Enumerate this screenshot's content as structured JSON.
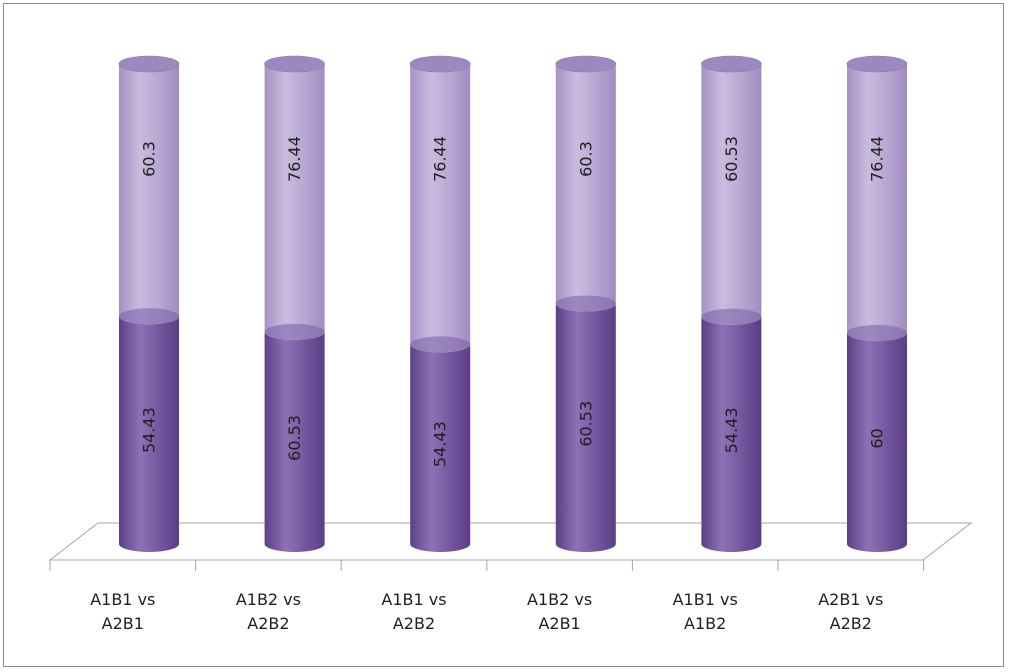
{
  "colors": {
    "series_bottom": "#6f4f9a",
    "series_bottom_light": "#9c80c0",
    "series_top": "#b3a2cf",
    "series_top_light": "#d2c7e3",
    "floor_line": "#a6a6a6"
  },
  "chart_data": {
    "type": "bar",
    "subtype": "stacked-100-percent-3d-cylinder",
    "categories": [
      [
        "A1B1 vs",
        "A2B1"
      ],
      [
        "A1B2 vs",
        "A2B2"
      ],
      [
        "A1B1 vs",
        "A2B2"
      ],
      [
        "A1B2 vs",
        "A2B1"
      ],
      [
        "A1B1 vs",
        "A1B2"
      ],
      [
        "A2B1 vs",
        "A2B2"
      ]
    ],
    "series": [
      {
        "values": [
          54.43,
          60.53,
          54.43,
          60.53,
          54.43,
          60
        ]
      },
      {
        "values": [
          60.3,
          76.44,
          76.44,
          60.3,
          60.53,
          76.44
        ]
      }
    ],
    "data_labels": {
      "bottom": [
        "54.43",
        "60.53",
        "54.43",
        "60.53",
        "54.43",
        "60"
      ],
      "top": [
        "60.3",
        "76.44",
        "76.44",
        "60.3",
        "60.53",
        "76.44"
      ]
    },
    "title": "",
    "xlabel": "",
    "ylabel": "",
    "legend": "none",
    "grid": false
  }
}
